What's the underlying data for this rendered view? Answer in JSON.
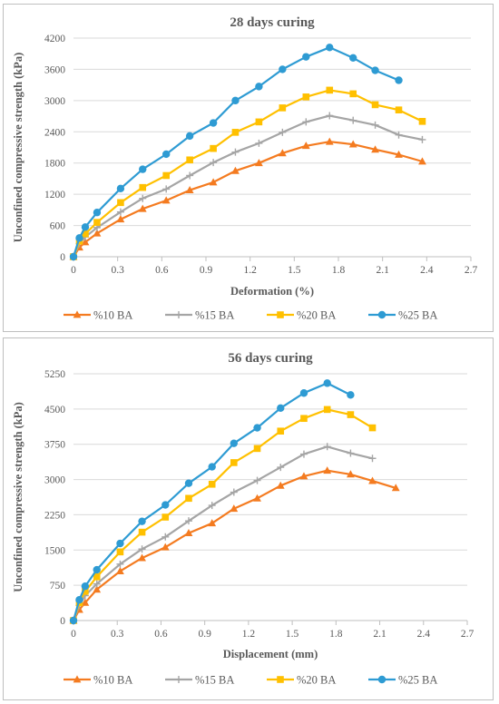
{
  "colors": {
    "s10": "#f47b20",
    "s15": "#a5a5a5",
    "s20": "#ffc000",
    "s25": "#2e9bd3"
  },
  "chart_data": [
    {
      "type": "line",
      "title": "28 days curing",
      "xlabel": "Deformation (%)",
      "ylabel": "Unconfined compressive strength (kPa)",
      "xlim": [
        0,
        2.7
      ],
      "ylim": [
        0,
        4200
      ],
      "xticks": [
        0,
        0.3,
        0.6,
        0.9,
        1.2,
        1.5,
        1.8,
        2.1,
        2.4,
        2.7
      ],
      "xtick_labels": [
        "0",
        "0.3",
        "0.6",
        "0.9",
        "1.2",
        "1.5",
        "1.8",
        "2.1",
        "2.4",
        "2.7"
      ],
      "yticks": [
        0,
        600,
        1200,
        1800,
        2400,
        3000,
        3600,
        4200
      ],
      "ytick_labels": [
        "0",
        "600",
        "1200",
        "1800",
        "2400",
        "3000",
        "3600",
        "4200"
      ],
      "grid": "horizontal",
      "legend": "bottom",
      "series": [
        {
          "name": "%10 BA",
          "marker": "triangle",
          "color_key": "s10",
          "x": [
            0,
            0.04,
            0.08,
            0.16,
            0.32,
            0.47,
            0.63,
            0.79,
            0.95,
            1.1,
            1.26,
            1.42,
            1.58,
            1.74,
            1.9,
            2.05,
            2.21,
            2.37
          ],
          "y": [
            0,
            180,
            280,
            450,
            720,
            920,
            1080,
            1280,
            1430,
            1650,
            1800,
            1990,
            2130,
            2210,
            2160,
            2060,
            1960,
            1830
          ]
        },
        {
          "name": "%15 BA",
          "marker": "plus",
          "color_key": "s15",
          "x": [
            0,
            0.04,
            0.08,
            0.16,
            0.32,
            0.47,
            0.63,
            0.79,
            0.95,
            1.1,
            1.26,
            1.42,
            1.58,
            1.74,
            1.9,
            2.05,
            2.21,
            2.37
          ],
          "y": [
            0,
            250,
            380,
            560,
            860,
            1120,
            1300,
            1560,
            1810,
            2010,
            2180,
            2390,
            2590,
            2710,
            2620,
            2530,
            2340,
            2250
          ]
        },
        {
          "name": "%20 BA",
          "marker": "square",
          "color_key": "s20",
          "x": [
            0,
            0.04,
            0.08,
            0.16,
            0.32,
            0.47,
            0.63,
            0.79,
            0.95,
            1.1,
            1.26,
            1.42,
            1.58,
            1.74,
            1.9,
            2.05,
            2.21,
            2.37
          ],
          "y": [
            0,
            300,
            440,
            660,
            1040,
            1330,
            1560,
            1860,
            2080,
            2390,
            2590,
            2860,
            3070,
            3200,
            3130,
            2920,
            2820,
            2600
          ]
        },
        {
          "name": "%25 BA",
          "marker": "circle",
          "color_key": "s25",
          "x": [
            0,
            0.04,
            0.08,
            0.16,
            0.32,
            0.47,
            0.63,
            0.79,
            0.95,
            1.1,
            1.26,
            1.42,
            1.58,
            1.74,
            1.9,
            2.05,
            2.21
          ],
          "y": [
            0,
            360,
            570,
            850,
            1310,
            1680,
            1970,
            2320,
            2570,
            3000,
            3270,
            3600,
            3840,
            4020,
            3820,
            3580,
            3390
          ]
        }
      ]
    },
    {
      "type": "line",
      "title": "56 days curing",
      "xlabel": "Displacement (mm)",
      "ylabel": "Unconfined compressive strength (kPa)",
      "xlim": [
        0,
        2.7
      ],
      "ylim": [
        0,
        5250
      ],
      "xticks": [
        0,
        0.3,
        0.6,
        0.9,
        1.2,
        1.5,
        1.8,
        2.1,
        2.4,
        2.7
      ],
      "xtick_labels": [
        "0",
        "0.3",
        "0.6",
        "0.9",
        "1.2",
        "1.5",
        "1.8",
        "2.1",
        "2.4",
        "2.7"
      ],
      "yticks": [
        0,
        750,
        1500,
        2250,
        3000,
        3750,
        4500,
        5250
      ],
      "ytick_labels": [
        "0",
        "750",
        "1500",
        "2250",
        "3000",
        "3750",
        "4500",
        "5250"
      ],
      "grid": "horizontal",
      "legend": "bottom",
      "series": [
        {
          "name": "%10 BA",
          "marker": "triangle",
          "color_key": "s10",
          "x": [
            0,
            0.04,
            0.08,
            0.16,
            0.32,
            0.47,
            0.63,
            0.79,
            0.95,
            1.1,
            1.26,
            1.42,
            1.58,
            1.74,
            1.9,
            2.05,
            2.21
          ],
          "y": [
            0,
            230,
            380,
            660,
            1050,
            1330,
            1560,
            1860,
            2070,
            2380,
            2600,
            2870,
            3070,
            3190,
            3110,
            2970,
            2820
          ]
        },
        {
          "name": "%15 BA",
          "marker": "plus",
          "color_key": "s15",
          "x": [
            0,
            0.04,
            0.08,
            0.16,
            0.32,
            0.47,
            0.63,
            0.79,
            0.95,
            1.1,
            1.26,
            1.42,
            1.58,
            1.74,
            1.9,
            2.05
          ],
          "y": [
            0,
            320,
            530,
            780,
            1200,
            1520,
            1780,
            2120,
            2450,
            2730,
            2980,
            3260,
            3540,
            3700,
            3560,
            3450
          ]
        },
        {
          "name": "%20 BA",
          "marker": "square",
          "color_key": "s20",
          "x": [
            0,
            0.04,
            0.08,
            0.16,
            0.32,
            0.47,
            0.63,
            0.79,
            0.95,
            1.1,
            1.26,
            1.42,
            1.58,
            1.74,
            1.9,
            2.05
          ],
          "y": [
            0,
            380,
            620,
            930,
            1460,
            1880,
            2200,
            2600,
            2900,
            3360,
            3660,
            4030,
            4300,
            4490,
            4380,
            4100
          ]
        },
        {
          "name": "%25 BA",
          "marker": "circle",
          "color_key": "s25",
          "x": [
            0,
            0.04,
            0.08,
            0.16,
            0.32,
            0.47,
            0.63,
            0.79,
            0.95,
            1.1,
            1.26,
            1.42,
            1.58,
            1.74,
            1.9
          ],
          "y": [
            0,
            440,
            730,
            1080,
            1640,
            2110,
            2460,
            2920,
            3270,
            3770,
            4100,
            4520,
            4840,
            5050,
            4800
          ]
        }
      ]
    }
  ]
}
